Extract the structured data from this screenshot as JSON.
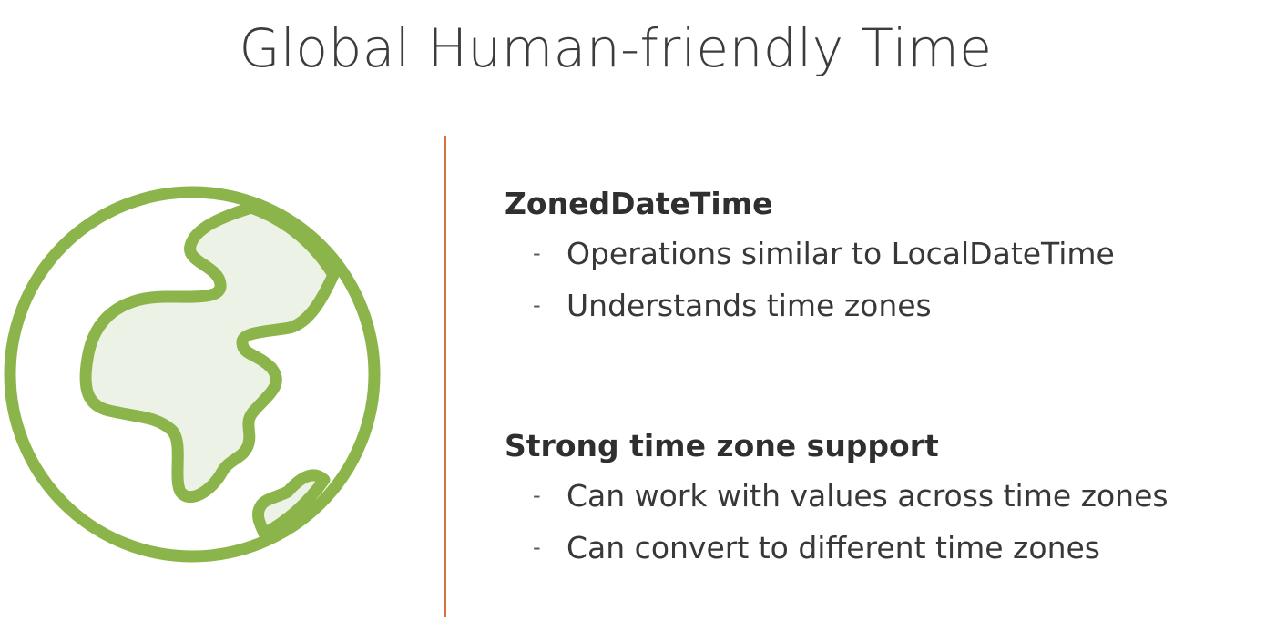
{
  "slide": {
    "title": "Global Human-friendly Time"
  },
  "icon": {
    "name": "globe-icon",
    "stroke_color": "#8bb54a",
    "land_fill": "#edf2e6"
  },
  "divider_color": "#d6703e",
  "sections": [
    {
      "heading": "ZonedDateTime",
      "bullets": [
        {
          "marker": "-",
          "text": "Operations similar to LocalDateTime"
        },
        {
          "marker": "-",
          "text": "Understands time zones"
        }
      ]
    },
    {
      "heading": "Strong time zone support",
      "bullets": [
        {
          "marker": "-",
          "text": "Can work with values across time zones"
        },
        {
          "marker": "-",
          "text": "Can convert to different time zones"
        }
      ]
    }
  ]
}
